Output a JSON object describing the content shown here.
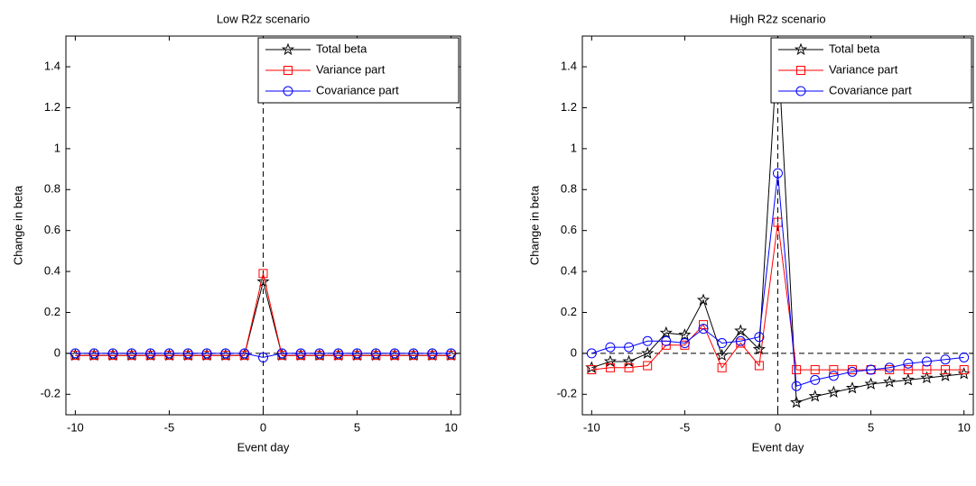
{
  "chart_data": [
    {
      "type": "line",
      "title": "Low R2z scenario",
      "xlabel": "Event day",
      "ylabel": "Change in beta",
      "x": [
        -10,
        -9,
        -8,
        -7,
        -6,
        -5,
        -4,
        -3,
        -2,
        -1,
        0,
        1,
        2,
        3,
        4,
        5,
        6,
        7,
        8,
        9,
        10
      ],
      "series": [
        {
          "name": "Total beta",
          "color": "#000000",
          "marker": "star",
          "values": [
            -0.01,
            -0.01,
            -0.01,
            -0.01,
            -0.01,
            -0.01,
            -0.01,
            -0.01,
            -0.01,
            -0.01,
            0.35,
            -0.01,
            -0.01,
            -0.01,
            -0.01,
            -0.01,
            -0.01,
            -0.01,
            -0.01,
            -0.01,
            -0.01
          ]
        },
        {
          "name": "Variance part",
          "color": "#ff0000",
          "marker": "square",
          "values": [
            -0.01,
            -0.01,
            -0.01,
            -0.01,
            -0.01,
            -0.01,
            -0.01,
            -0.01,
            -0.01,
            -0.01,
            0.39,
            -0.01,
            -0.01,
            -0.01,
            -0.01,
            -0.01,
            -0.01,
            -0.01,
            -0.01,
            -0.01,
            -0.01
          ]
        },
        {
          "name": "Covariance part",
          "color": "#0000ff",
          "marker": "circle",
          "values": [
            0,
            0,
            0,
            0,
            0,
            0,
            0,
            0,
            0,
            0,
            -0.02,
            0,
            0,
            0,
            0,
            0,
            0,
            0,
            0,
            0,
            0
          ]
        }
      ],
      "xlim": [
        -10.5,
        10.5
      ],
      "xticks": [
        -10,
        -5,
        0,
        5,
        10
      ],
      "ylim": [
        -0.3,
        1.55
      ],
      "yticks": [
        -0.2,
        0,
        0.2,
        0.4,
        0.6,
        0.8,
        1,
        1.2,
        1.4
      ],
      "legend": "upper right"
    },
    {
      "type": "line",
      "title": "High R2z scenario",
      "xlabel": "Event day",
      "ylabel": "Change in beta",
      "x": [
        -10,
        -9,
        -8,
        -7,
        -6,
        -5,
        -4,
        -3,
        -2,
        -1,
        0,
        1,
        2,
        3,
        4,
        5,
        6,
        7,
        8,
        9,
        10
      ],
      "series": [
        {
          "name": "Total beta",
          "color": "#000000",
          "marker": "star",
          "values": [
            -0.07,
            -0.04,
            -0.04,
            0.0,
            0.1,
            0.09,
            0.26,
            -0.01,
            0.11,
            0.02,
            1.52,
            -0.24,
            -0.21,
            -0.19,
            -0.17,
            -0.15,
            -0.14,
            -0.13,
            -0.12,
            -0.11,
            -0.1
          ]
        },
        {
          "name": "Variance part",
          "color": "#ff0000",
          "marker": "square",
          "values": [
            -0.08,
            -0.07,
            -0.07,
            -0.06,
            0.04,
            0.04,
            0.14,
            -0.07,
            0.05,
            -0.06,
            0.64,
            -0.08,
            -0.08,
            -0.08,
            -0.08,
            -0.08,
            -0.08,
            -0.08,
            -0.08,
            -0.08,
            -0.08
          ]
        },
        {
          "name": "Covariance part",
          "color": "#0000ff",
          "marker": "circle",
          "values": [
            0.0,
            0.03,
            0.03,
            0.06,
            0.06,
            0.05,
            0.12,
            0.05,
            0.06,
            0.08,
            0.88,
            -0.16,
            -0.13,
            -0.11,
            -0.09,
            -0.08,
            -0.07,
            -0.05,
            -0.04,
            -0.03,
            -0.02
          ]
        }
      ],
      "xlim": [
        -10.5,
        10.5
      ],
      "xticks": [
        -10,
        -5,
        0,
        5,
        10
      ],
      "ylim": [
        -0.3,
        1.55
      ],
      "yticks": [
        -0.2,
        0,
        0.2,
        0.4,
        0.6,
        0.8,
        1,
        1.2,
        1.4
      ],
      "legend": "upper right"
    }
  ]
}
